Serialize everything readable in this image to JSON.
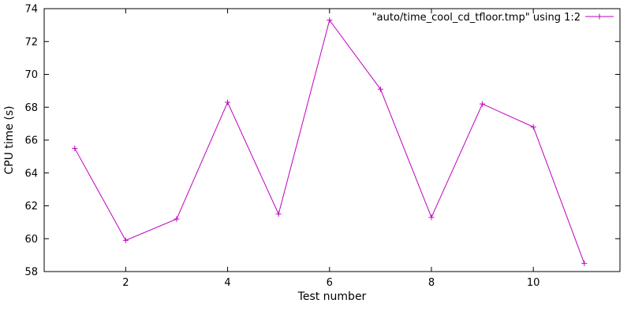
{
  "chart_data": {
    "type": "line",
    "title": "",
    "xlabel": "Test number",
    "ylabel": "CPU time (s)",
    "xlim": [
      0.4,
      11.7
    ],
    "ylim": [
      58,
      74
    ],
    "xticks": [
      2,
      4,
      6,
      8,
      10
    ],
    "yticks": [
      58,
      60,
      62,
      64,
      66,
      68,
      70,
      72,
      74
    ],
    "grid": false,
    "legend_position": "top-right-inside",
    "line_color": "#c000c0",
    "marker": "plus",
    "series": [
      {
        "name": "\"auto/time_cool_cd_tfloor.tmp\" using 1:2",
        "x": [
          1,
          2,
          3,
          4,
          5,
          6,
          7,
          8,
          9,
          10,
          11
        ],
        "y": [
          65.5,
          59.9,
          61.2,
          68.3,
          61.5,
          73.3,
          69.1,
          61.3,
          68.2,
          66.8,
          58.5
        ]
      }
    ]
  }
}
